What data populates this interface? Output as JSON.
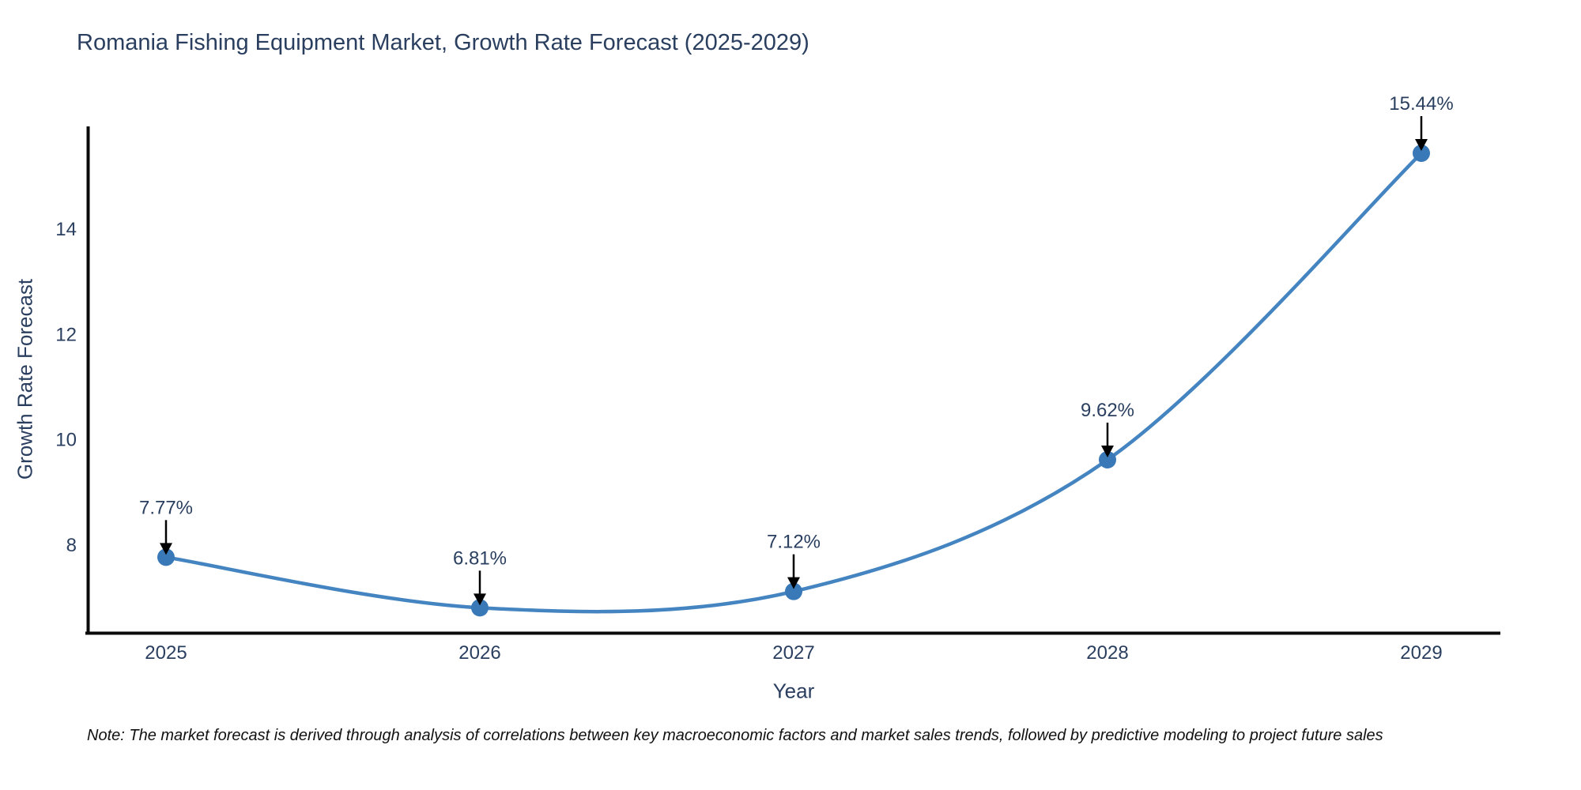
{
  "title": "Romania Fishing Equipment Market, Growth Rate Forecast (2025-2029)",
  "note": "Note: The market forecast is derived through analysis of correlations between key macroeconomic factors and market sales trends, followed by predictive modeling to project future sales",
  "chart_data": {
    "type": "line",
    "title": "Romania Fishing Equipment Market, Growth Rate Forecast (2025-2029)",
    "xlabel": "Year",
    "ylabel": "Growth Rate Forecast",
    "x": [
      2025,
      2026,
      2027,
      2028,
      2029
    ],
    "values": [
      7.77,
      6.81,
      7.12,
      9.62,
      15.44
    ],
    "point_labels": [
      "7.77%",
      "6.81%",
      "7.12%",
      "9.62%",
      "15.44%"
    ],
    "yticks": [
      8,
      10,
      12,
      14
    ],
    "xticks": [
      "2025",
      "2026",
      "2027",
      "2028",
      "2029"
    ],
    "ylim": [
      6.31,
      16.13
    ],
    "xlim_years": [
      2024.75,
      2029.25
    ],
    "line_shape": "spline",
    "grid": false,
    "legend_position": "none",
    "colors": {
      "line": "#4484c0",
      "marker": "#3a79b8",
      "axis": "#0a0a0a",
      "text": "#2a3f5f",
      "annotation_arrow": "#000000"
    }
  }
}
